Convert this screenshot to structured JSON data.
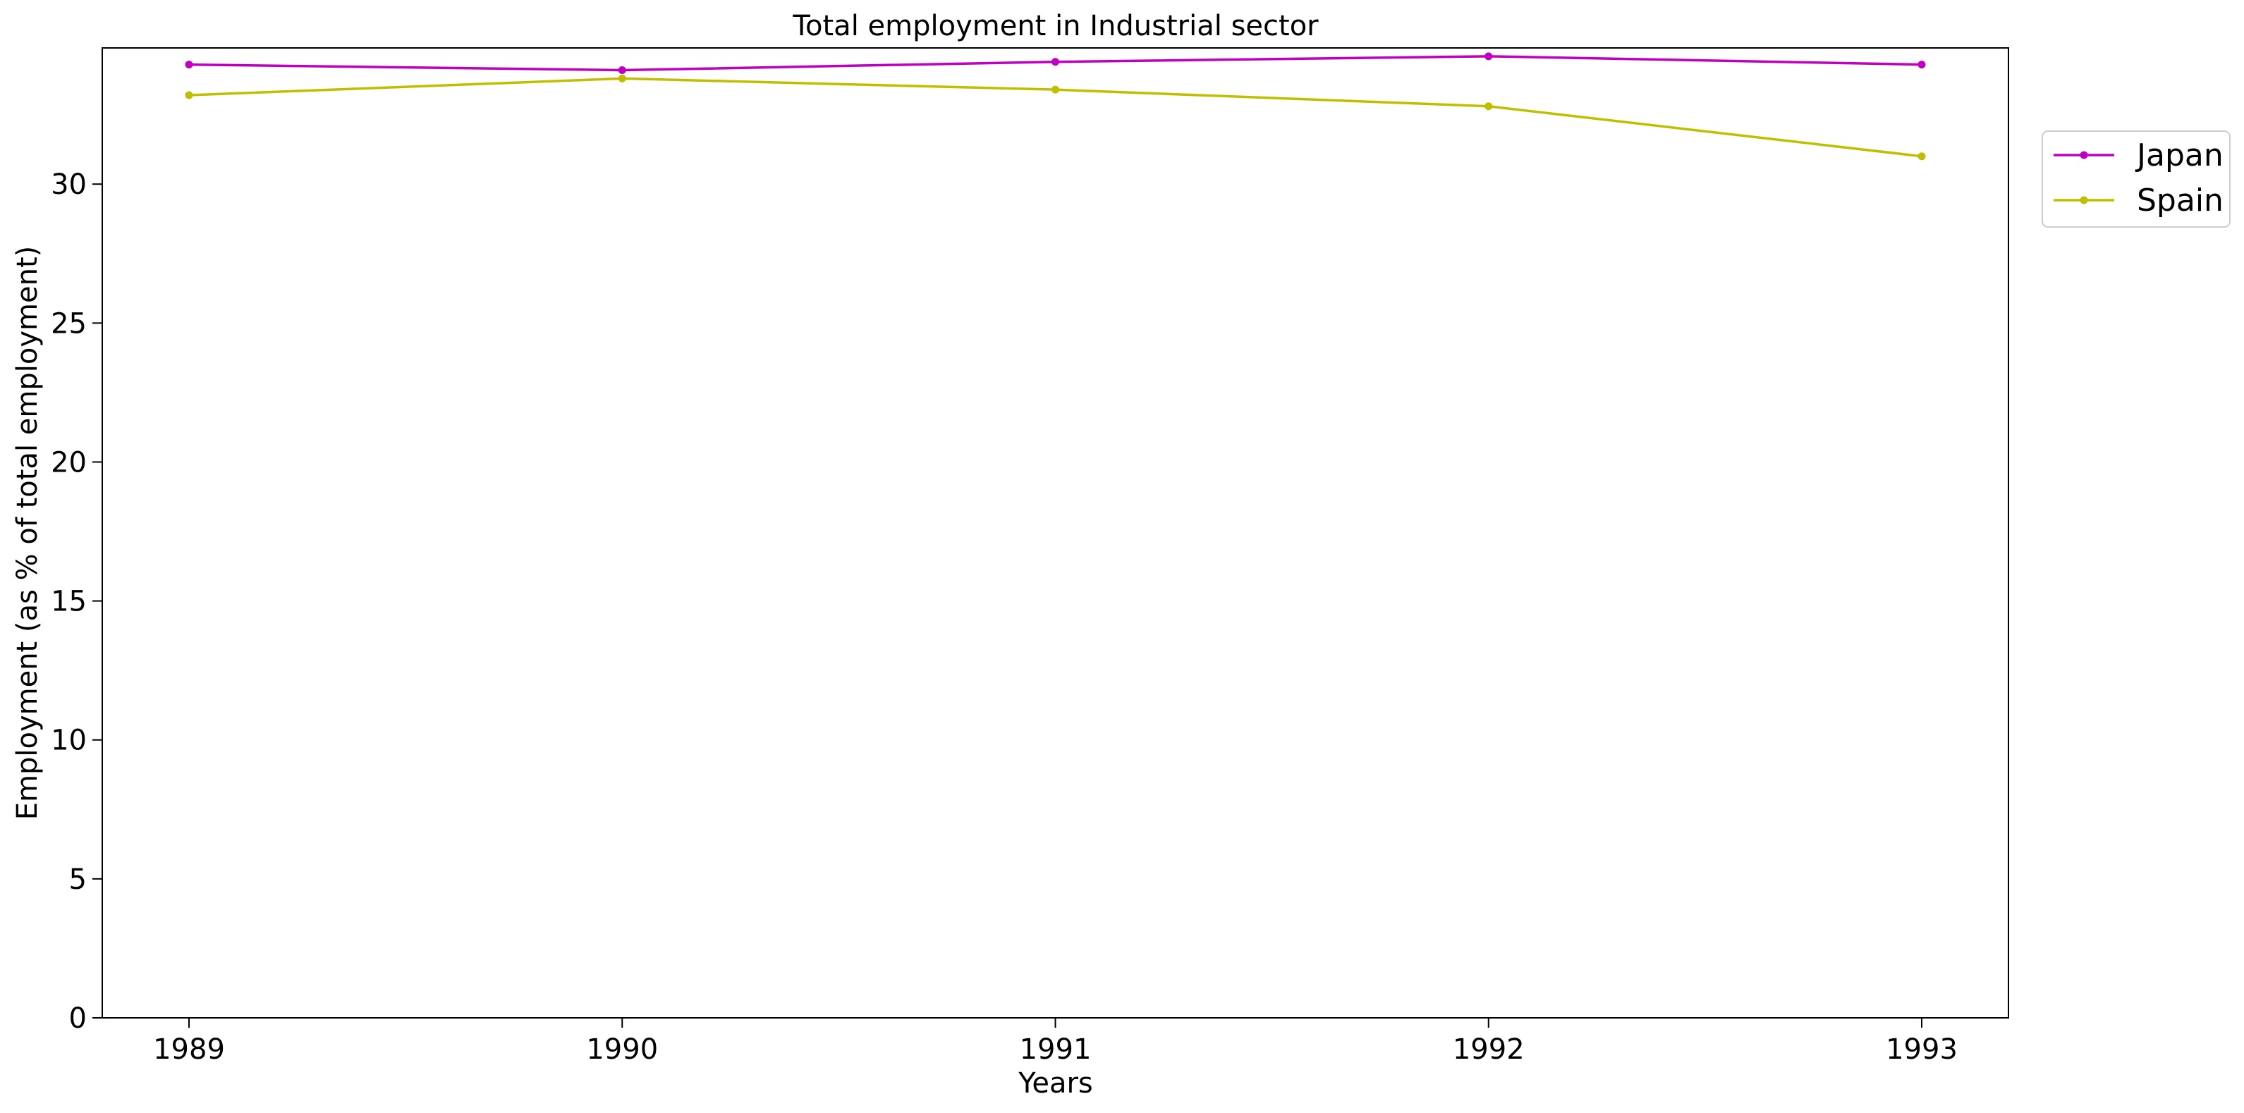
{
  "chart_data": {
    "type": "line",
    "title": "Total employment in Industrial sector",
    "xlabel": "Years",
    "ylabel": "Employment (as % of total employment)",
    "x": [
      "1989",
      "1990",
      "1991",
      "1992",
      "1993"
    ],
    "ylim": [
      0,
      34.9
    ],
    "yticks": [
      0,
      5,
      10,
      15,
      20,
      25,
      30
    ],
    "grid": false,
    "legend_position": "upper right, outside plot",
    "series": [
      {
        "name": "Japan",
        "color": "#c000c0",
        "values": [
          34.3,
          34.1,
          34.4,
          34.6,
          34.3
        ]
      },
      {
        "name": "Spain",
        "color": "#bfbf00",
        "values": [
          33.2,
          33.8,
          33.4,
          32.8,
          31.0
        ]
      }
    ]
  }
}
